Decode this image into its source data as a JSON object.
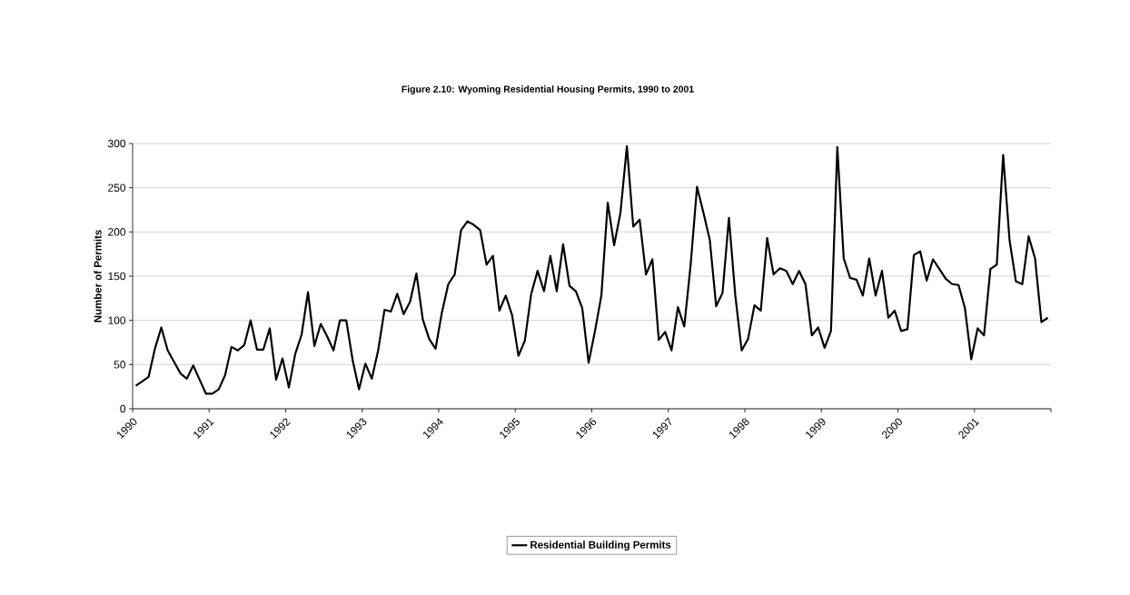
{
  "chart_data": {
    "type": "line",
    "title": "Figure 2.10: Wyoming Residential Housing Permits, 1990 to 2001",
    "ylabel": "Number of Permits",
    "x": [
      "1990-01",
      "1990-02",
      "1990-03",
      "1990-04",
      "1990-05",
      "1990-06",
      "1990-07",
      "1990-08",
      "1990-09",
      "1990-10",
      "1990-11",
      "1990-12",
      "1991-01",
      "1991-02",
      "1991-03",
      "1991-04",
      "1991-05",
      "1991-06",
      "1991-07",
      "1991-08",
      "1991-09",
      "1991-10",
      "1991-11",
      "1991-12",
      "1992-01",
      "1992-02",
      "1992-03",
      "1992-04",
      "1992-05",
      "1992-06",
      "1992-07",
      "1992-08",
      "1992-09",
      "1992-10",
      "1992-11",
      "1992-12",
      "1993-01",
      "1993-02",
      "1993-03",
      "1993-04",
      "1993-05",
      "1993-06",
      "1993-07",
      "1993-08",
      "1993-09",
      "1993-10",
      "1993-11",
      "1993-12",
      "1994-01",
      "1994-02",
      "1994-03",
      "1994-04",
      "1994-05",
      "1994-06",
      "1994-07",
      "1994-08",
      "1994-09",
      "1994-10",
      "1994-11",
      "1994-12",
      "1995-01",
      "1995-02",
      "1995-03",
      "1995-04",
      "1995-05",
      "1995-06",
      "1995-07",
      "1995-08",
      "1995-09",
      "1995-10",
      "1995-11",
      "1995-12",
      "1996-01",
      "1996-02",
      "1996-03",
      "1996-04",
      "1996-05",
      "1996-06",
      "1996-07",
      "1996-08",
      "1996-09",
      "1996-10",
      "1996-11",
      "1996-12",
      "1997-01",
      "1997-02",
      "1997-03",
      "1997-04",
      "1997-05",
      "1997-06",
      "1997-07",
      "1997-08",
      "1997-09",
      "1997-10",
      "1997-11",
      "1997-12",
      "1998-01",
      "1998-02",
      "1998-03",
      "1998-04",
      "1998-05",
      "1998-06",
      "1998-07",
      "1998-08",
      "1998-09",
      "1998-10",
      "1998-11",
      "1998-12",
      "1999-01",
      "1999-02",
      "1999-03",
      "1999-04",
      "1999-05",
      "1999-06",
      "1999-07",
      "1999-08",
      "1999-09",
      "1999-10",
      "1999-11",
      "1999-12",
      "2000-01",
      "2000-02",
      "2000-03",
      "2000-04",
      "2000-05",
      "2000-06",
      "2000-07",
      "2000-08",
      "2000-09",
      "2000-10",
      "2000-11",
      "2000-12",
      "2001-01",
      "2001-02",
      "2001-03",
      "2001-04",
      "2001-05",
      "2001-06",
      "2001-07",
      "2001-08",
      "2001-09",
      "2001-10",
      "2001-11",
      "2001-12"
    ],
    "series": [
      {
        "name": "Residential Building Permits",
        "color": "#000000",
        "values": [
          26,
          31,
          36,
          68,
          92,
          66,
          53,
          40,
          34,
          49,
          33,
          17,
          17,
          22,
          38,
          70,
          66,
          72,
          100,
          67,
          67,
          91,
          33,
          57,
          24,
          62,
          84,
          132,
          71,
          96,
          82,
          66,
          100,
          100,
          55,
          22,
          51,
          34,
          66,
          112,
          110,
          130,
          107,
          121,
          153,
          101,
          79,
          68,
          109,
          141,
          152,
          202,
          212,
          208,
          202,
          163,
          173,
          111,
          128,
          106,
          60,
          77,
          130,
          156,
          133,
          173,
          133,
          186,
          139,
          133,
          114,
          52,
          88,
          128,
          233,
          185,
          222,
          297,
          206,
          214,
          152,
          169,
          78,
          87,
          66,
          115,
          93,
          163,
          251,
          222,
          191,
          116,
          131,
          216,
          128,
          66,
          79,
          117,
          111,
          193,
          152,
          159,
          156,
          141,
          156,
          141,
          83,
          92,
          69,
          88,
          296,
          170,
          148,
          146,
          128,
          170,
          128,
          156,
          103,
          111,
          88,
          90,
          174,
          178,
          145,
          169,
          158,
          147,
          141,
          140,
          114,
          56,
          91,
          83,
          158,
          163,
          287,
          191,
          144,
          141,
          195,
          170,
          98,
          103
        ]
      }
    ],
    "xlim": [
      "1990",
      "2002"
    ],
    "xticks": [
      "1990",
      "1991",
      "1992",
      "1993",
      "1994",
      "1995",
      "1996",
      "1997",
      "1998",
      "1999",
      "2000",
      "2001",
      {
        "value": "2002",
        "label": null
      }
    ],
    "ylim": [
      0,
      300
    ],
    "yticks": [
      0,
      50,
      100,
      150,
      200,
      250,
      300
    ],
    "grid": "y",
    "legend": "bottom",
    "marker": "none",
    "line_style": "solid"
  }
}
